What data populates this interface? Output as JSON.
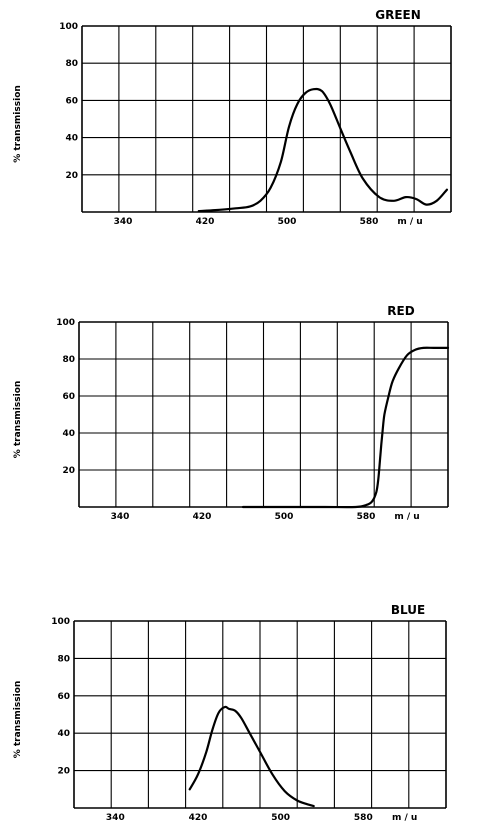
{
  "chart_data": [
    {
      "type": "line",
      "title": "GREEN",
      "ylabel": "% transmission",
      "xunit": "m / u",
      "ylim": [
        0,
        100
      ],
      "xlim": [
        300,
        660
      ],
      "x_ticks": [
        340,
        420,
        500,
        580
      ],
      "y_ticks": [
        20,
        40,
        60,
        80,
        100
      ],
      "grid": true,
      "series": [
        {
          "x": [
            414,
            430,
            450,
            464,
            474,
            484,
            494,
            502,
            510,
            518,
            526,
            534,
            542,
            552,
            562,
            574,
            590,
            604,
            616,
            626,
            636,
            646,
            656
          ],
          "y": [
            0.5,
            1,
            2,
            3,
            6,
            13,
            27,
            46,
            58,
            64,
            66,
            65,
            58,
            45,
            32,
            18,
            8,
            6,
            8,
            7,
            4,
            6,
            12
          ]
        }
      ]
    },
    {
      "type": "line",
      "title": "RED",
      "ylabel": "% transmission",
      "xunit": "m / u",
      "ylim": [
        0,
        100
      ],
      "xlim": [
        300,
        660
      ],
      "x_ticks": [
        340,
        420,
        500,
        580
      ],
      "y_ticks": [
        20,
        40,
        60,
        80,
        100
      ],
      "grid": true,
      "series": [
        {
          "x": [
            460,
            500,
            540,
            570,
            580,
            586,
            590,
            592,
            594,
            596,
            598,
            602,
            606,
            612,
            620,
            628,
            636,
            646,
            656,
            660
          ],
          "y": [
            0,
            0,
            0,
            0,
            1,
            3,
            8,
            15,
            28,
            40,
            50,
            60,
            68,
            75,
            82,
            85,
            86,
            86,
            86,
            86
          ]
        }
      ]
    },
    {
      "type": "line",
      "title": "BLUE",
      "ylabel": "% transmission",
      "xunit": "m / u",
      "ylim": [
        0,
        100
      ],
      "xlim": [
        300,
        660
      ],
      "x_ticks": [
        340,
        420,
        500,
        580
      ],
      "y_ticks": [
        20,
        40,
        60,
        80,
        100
      ],
      "grid": true,
      "series": [
        {
          "x": [
            412,
            420,
            428,
            434,
            440,
            446,
            450,
            456,
            462,
            470,
            480,
            492,
            504,
            516,
            526,
            532
          ],
          "y": [
            10,
            18,
            30,
            42,
            51,
            54,
            53,
            52,
            48,
            40,
            30,
            18,
            9,
            4,
            2,
            1
          ]
        }
      ]
    }
  ]
}
